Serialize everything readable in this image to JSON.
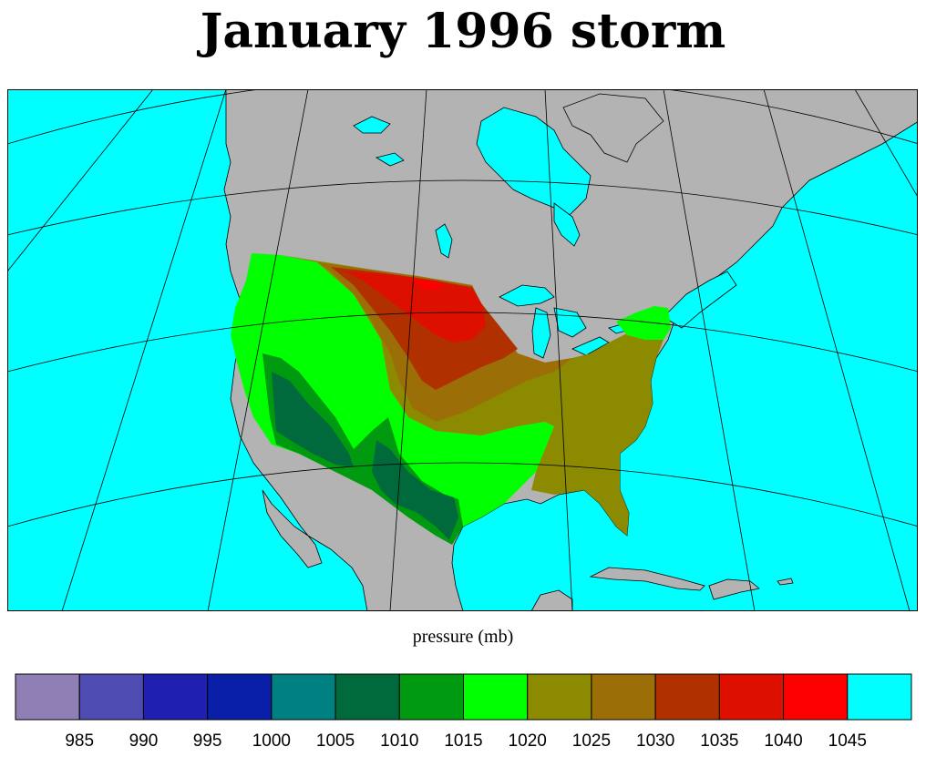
{
  "title": "January 1996 storm",
  "legend": {
    "title": "pressure (mb)",
    "levels": [
      {
        "value": "",
        "color": "#8f7fb5"
      },
      {
        "value": "",
        "color": "#4f4db3"
      },
      {
        "value": "",
        "color": "#2020b0"
      },
      {
        "value": "",
        "color": "#0a1fa8"
      },
      {
        "value": "",
        "color": "#008080"
      },
      {
        "value": "",
        "color": "#006a3c"
      },
      {
        "value": "",
        "color": "#009a10"
      },
      {
        "value": "",
        "color": "#00ff00"
      },
      {
        "value": "",
        "color": "#8c8a00"
      },
      {
        "value": "",
        "color": "#9c6e08"
      },
      {
        "value": "",
        "color": "#b03000"
      },
      {
        "value": "",
        "color": "#dd1000"
      },
      {
        "value": "",
        "color": "#ff0000"
      },
      {
        "value": "",
        "color": "#00ffff"
      }
    ],
    "tick_labels": [
      "985",
      "990",
      "995",
      "1000",
      "1005",
      "1010",
      "1015",
      "1020",
      "1025",
      "1030",
      "1035",
      "1040",
      "1045"
    ]
  },
  "map": {
    "ocean_color": "#00ffff",
    "land_color": "#b3b3b3",
    "line_color": "#000000"
  }
}
